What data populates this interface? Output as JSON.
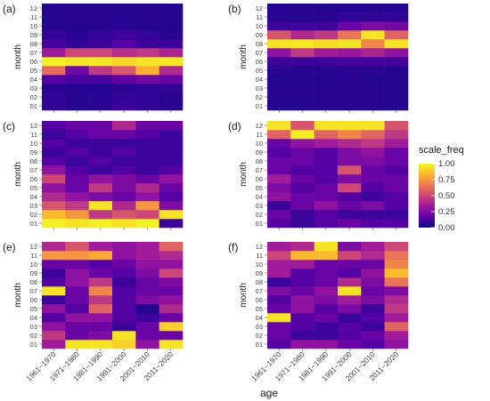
{
  "chart_data": {
    "type": "heatmap",
    "xlabel": "age",
    "ylabel": "month",
    "x_categories": [
      "1961~1970",
      "1971~1980",
      "1981~1990",
      "1991~2000",
      "2001~2010",
      "2011~2020"
    ],
    "y_categories": [
      "01",
      "02",
      "03",
      "04",
      "05",
      "06",
      "07",
      "08",
      "09",
      "10",
      "11",
      "12"
    ],
    "legend": {
      "title": "scale_freq",
      "ticks": [
        "1.00",
        "0.75",
        "0.50",
        "0.25",
        "0.00"
      ],
      "range": [
        0,
        1
      ],
      "placement": "right",
      "colors": [
        "#0d0887",
        "#5c01a6",
        "#9c179e",
        "#cc4778",
        "#ed7953",
        "#fdb42f",
        "#f0f921"
      ]
    },
    "panels": [
      {
        "label": "(a)",
        "z": [
          [
            0.08,
            0.05,
            0.06,
            0.1,
            0.08,
            0.06
          ],
          [
            0.08,
            0.05,
            0.06,
            0.08,
            0.07,
            0.06
          ],
          [
            0.06,
            0.05,
            0.05,
            0.06,
            0.07,
            0.08
          ],
          [
            0.15,
            0.12,
            0.12,
            0.18,
            0.22,
            0.2
          ],
          [
            0.62,
            0.22,
            0.45,
            0.55,
            0.82,
            0.4
          ],
          [
            0.98,
            0.95,
            0.96,
            0.92,
            0.95,
            0.96
          ],
          [
            0.35,
            0.5,
            0.5,
            0.42,
            0.45,
            0.38
          ],
          [
            0.12,
            0.08,
            0.1,
            0.15,
            0.1,
            0.1
          ],
          [
            0.08,
            0.06,
            0.08,
            0.1,
            0.08,
            0.06
          ],
          [
            0.05,
            0.05,
            0.05,
            0.06,
            0.05,
            0.05
          ],
          [
            0.05,
            0.05,
            0.05,
            0.05,
            0.05,
            0.05
          ],
          [
            0.05,
            0.05,
            0.05,
            0.05,
            0.05,
            0.05
          ]
        ]
      },
      {
        "label": "(b)",
        "z": [
          [
            0.05,
            0.05,
            0.05,
            0.05,
            0.05,
            0.05
          ],
          [
            0.05,
            0.05,
            0.05,
            0.05,
            0.05,
            0.05
          ],
          [
            0.05,
            0.05,
            0.05,
            0.05,
            0.05,
            0.05
          ],
          [
            0.05,
            0.05,
            0.05,
            0.06,
            0.05,
            0.05
          ],
          [
            0.06,
            0.05,
            0.06,
            0.06,
            0.06,
            0.05
          ],
          [
            0.1,
            0.1,
            0.1,
            0.12,
            0.12,
            0.12
          ],
          [
            0.3,
            0.45,
            0.35,
            0.32,
            0.38,
            0.3
          ],
          [
            0.95,
            0.96,
            0.93,
            0.95,
            0.7,
            0.95
          ],
          [
            0.55,
            0.4,
            0.45,
            0.65,
            0.95,
            0.6
          ],
          [
            0.1,
            0.1,
            0.1,
            0.2,
            0.25,
            0.22
          ],
          [
            0.06,
            0.05,
            0.06,
            0.08,
            0.08,
            0.08
          ],
          [
            0.05,
            0.05,
            0.05,
            0.05,
            0.05,
            0.05
          ]
        ]
      },
      {
        "label": "(c)",
        "z": [
          [
            0.98,
            0.95,
            0.98,
            0.95,
            0.98,
            0.1
          ],
          [
            0.85,
            0.75,
            0.45,
            0.55,
            0.5,
            0.95
          ],
          [
            0.55,
            0.45,
            0.95,
            0.4,
            0.75,
            0.25
          ],
          [
            0.4,
            0.3,
            0.25,
            0.2,
            0.3,
            0.15
          ],
          [
            0.3,
            0.2,
            0.45,
            0.25,
            0.4,
            0.2
          ],
          [
            0.5,
            0.2,
            0.3,
            0.25,
            0.2,
            0.3
          ],
          [
            0.3,
            0.15,
            0.1,
            0.15,
            0.1,
            0.15
          ],
          [
            0.15,
            0.1,
            0.15,
            0.1,
            0.1,
            0.1
          ],
          [
            0.1,
            0.15,
            0.1,
            0.15,
            0.1,
            0.1
          ],
          [
            0.15,
            0.1,
            0.1,
            0.1,
            0.1,
            0.1
          ],
          [
            0.1,
            0.15,
            0.2,
            0.2,
            0.15,
            0.1
          ],
          [
            0.15,
            0.2,
            0.2,
            0.4,
            0.2,
            0.2
          ]
        ]
      },
      {
        "label": "(d)",
        "z": [
          [
            0.15,
            0.1,
            0.15,
            0.2,
            0.15,
            0.15
          ],
          [
            0.2,
            0.1,
            0.15,
            0.1,
            0.1,
            0.1
          ],
          [
            0.1,
            0.2,
            0.3,
            0.2,
            0.25,
            0.15
          ],
          [
            0.3,
            0.2,
            0.2,
            0.15,
            0.1,
            0.15
          ],
          [
            0.25,
            0.15,
            0.2,
            0.5,
            0.15,
            0.2
          ],
          [
            0.35,
            0.2,
            0.15,
            0.25,
            0.2,
            0.2
          ],
          [
            0.2,
            0.15,
            0.15,
            0.55,
            0.2,
            0.15
          ],
          [
            0.2,
            0.2,
            0.15,
            0.25,
            0.25,
            0.2
          ],
          [
            0.15,
            0.2,
            0.15,
            0.25,
            0.3,
            0.2
          ],
          [
            0.2,
            0.3,
            0.35,
            0.4,
            0.45,
            0.35
          ],
          [
            0.6,
            0.97,
            0.6,
            0.7,
            0.6,
            0.45
          ],
          [
            0.95,
            0.55,
            0.95,
            0.95,
            0.95,
            0.55
          ]
        ]
      },
      {
        "label": "(e)",
        "z": [
          [
            0.35,
            0.95,
            0.95,
            0.9,
            0.3,
            0.95
          ],
          [
            0.45,
            0.2,
            0.25,
            0.95,
            0.2,
            0.2
          ],
          [
            0.3,
            0.2,
            0.2,
            0.1,
            0.2,
            0.9
          ],
          [
            0.15,
            0.3,
            0.3,
            0.15,
            0.1,
            0.2
          ],
          [
            0.3,
            0.15,
            0.6,
            0.15,
            0.05,
            0.4
          ],
          [
            0.1,
            0.2,
            0.45,
            0.15,
            0.25,
            0.3
          ],
          [
            0.95,
            0.2,
            0.7,
            0.15,
            0.2,
            0.2
          ],
          [
            0.15,
            0.3,
            0.45,
            0.1,
            0.2,
            0.25
          ],
          [
            0.1,
            0.3,
            0.2,
            0.15,
            0.25,
            0.5
          ],
          [
            0.2,
            0.2,
            0.15,
            0.2,
            0.3,
            0.3
          ],
          [
            0.75,
            0.75,
            0.8,
            0.3,
            0.35,
            0.4
          ],
          [
            0.4,
            0.55,
            0.35,
            0.3,
            0.35,
            0.6
          ]
        ]
      },
      {
        "label": "(f)",
        "z": [
          [
            0.15,
            0.3,
            0.3,
            0.2,
            0.15,
            0.3
          ],
          [
            0.2,
            0.1,
            0.1,
            0.15,
            0.2,
            0.35
          ],
          [
            0.2,
            0.15,
            0.1,
            0.15,
            0.1,
            0.6
          ],
          [
            0.95,
            0.15,
            0.2,
            0.1,
            0.15,
            0.35
          ],
          [
            0.2,
            0.3,
            0.15,
            0.25,
            0.1,
            0.45
          ],
          [
            0.15,
            0.3,
            0.25,
            0.35,
            0.25,
            0.4
          ],
          [
            0.25,
            0.2,
            0.3,
            0.95,
            0.2,
            0.25
          ],
          [
            0.1,
            0.15,
            0.2,
            0.4,
            0.25,
            0.65
          ],
          [
            0.35,
            0.15,
            0.2,
            0.15,
            0.3,
            0.85
          ],
          [
            0.35,
            0.35,
            0.2,
            0.2,
            0.2,
            0.7
          ],
          [
            0.5,
            0.85,
            0.85,
            0.5,
            0.4,
            0.65
          ],
          [
            0.35,
            0.4,
            0.95,
            0.25,
            0.35,
            0.5
          ]
        ]
      }
    ]
  }
}
